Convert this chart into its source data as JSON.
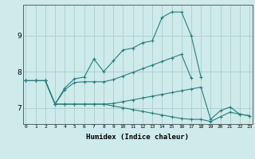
{
  "xlabel": "Humidex (Indice chaleur)",
  "background_color": "#ceeaea",
  "grid_color": "#aacece",
  "line_color": "#2a7d7d",
  "x_ticks": [
    0,
    1,
    2,
    3,
    4,
    5,
    6,
    7,
    8,
    9,
    10,
    11,
    12,
    13,
    14,
    15,
    16,
    17,
    18,
    19,
    20,
    21,
    22,
    23
  ],
  "y_ticks": [
    7,
    8,
    9
  ],
  "xlim": [
    -0.3,
    23.3
  ],
  "ylim": [
    6.55,
    9.85
  ],
  "series": [
    [
      7.75,
      7.75,
      7.75,
      7.1,
      7.55,
      7.8,
      7.85,
      8.35,
      8.0,
      8.3,
      8.6,
      8.65,
      8.8,
      8.85,
      9.5,
      9.65,
      9.65,
      9.0,
      7.85,
      null,
      null,
      null,
      null,
      null
    ],
    [
      7.75,
      7.75,
      7.75,
      7.1,
      7.5,
      7.7,
      7.72,
      7.72,
      7.72,
      7.78,
      7.88,
      7.98,
      8.08,
      8.18,
      8.28,
      8.38,
      8.48,
      7.82,
      null,
      null,
      null,
      null,
      null,
      null
    ],
    [
      7.75,
      7.75,
      7.75,
      7.1,
      7.1,
      7.1,
      7.1,
      7.1,
      7.1,
      7.05,
      7.0,
      6.95,
      6.9,
      6.85,
      6.8,
      6.75,
      6.7,
      6.68,
      6.68,
      6.62,
      6.75,
      6.88,
      6.82,
      6.78
    ],
    [
      7.75,
      7.75,
      7.75,
      7.1,
      7.1,
      7.1,
      7.1,
      7.1,
      7.1,
      7.12,
      7.17,
      7.22,
      7.27,
      7.32,
      7.37,
      7.42,
      7.47,
      7.52,
      7.57,
      6.68,
      6.92,
      7.02,
      6.82,
      6.78
    ]
  ]
}
